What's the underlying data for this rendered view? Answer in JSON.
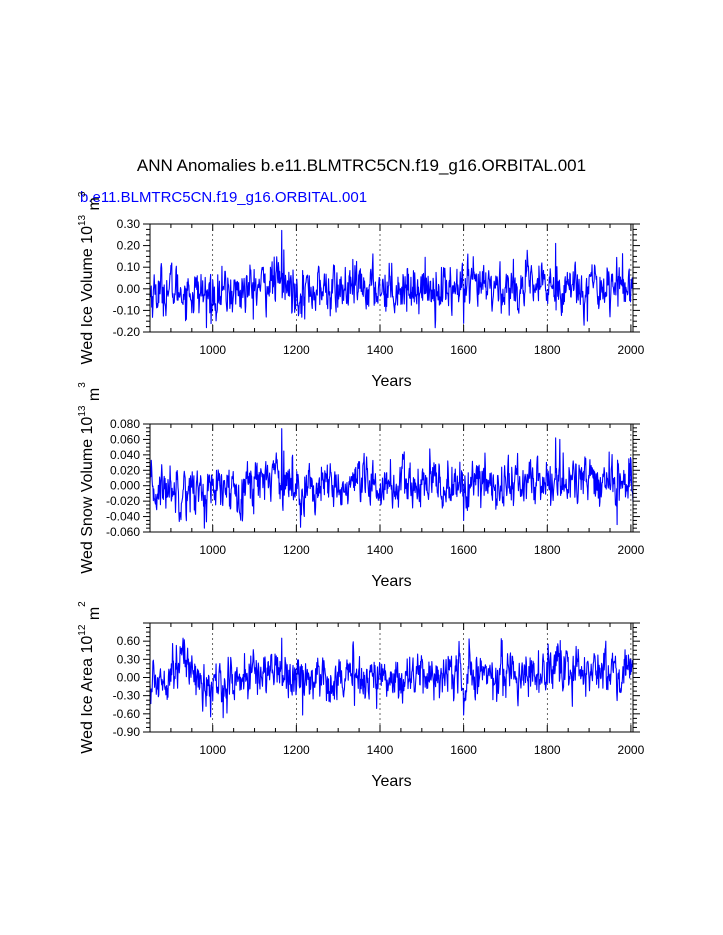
{
  "title": "ANN Anomalies b.e11.BLMTRC5CN.f19_g16.ORBITAL.001",
  "case_label": "b.e11.BLMTRC5CN.f19_g16.ORBITAL.001",
  "colors": {
    "series": "#0000ff",
    "axis": "#000000",
    "grid": "#000000"
  },
  "chart_data": [
    {
      "type": "line",
      "name": "ice-volume",
      "ylabel": "Wed Ice Volume 10^13 m^3",
      "ylabel_parts": {
        "main": "Wed Ice Volume 10",
        "exp1": "13",
        "unit": " m",
        "exp2": "3"
      },
      "xlabel": "Years",
      "xlim": [
        850,
        2005
      ],
      "ylim": [
        -0.2,
        0.3
      ],
      "xticks": [
        1000,
        1200,
        1400,
        1600,
        1800,
        2000
      ],
      "xtick_labels": [
        "1000",
        "1200",
        "1400",
        "1600",
        "1800",
        "2000"
      ],
      "yticks": [
        -0.2,
        -0.1,
        0.0,
        0.1,
        0.2,
        0.3
      ],
      "ytick_labels": [
        "-0.20",
        "-0.10",
        "0.00",
        "0.10",
        "0.20",
        "0.30"
      ],
      "vgrid": [
        1000,
        1200,
        1400,
        1600,
        1800,
        2000
      ],
      "series": [
        {
          "name": "Wed Ice Volume",
          "start_year": 850,
          "end_year": 2005,
          "amp": 0.05,
          "min": -0.18,
          "max": 0.27,
          "trend": [
            [
              850,
              -0.02
            ],
            [
              900,
              0.0
            ],
            [
              1000,
              -0.03
            ],
            [
              1100,
              0.0
            ],
            [
              1150,
              0.04
            ],
            [
              1180,
              0.0
            ],
            [
              1300,
              -0.01
            ],
            [
              1400,
              0.01
            ],
            [
              1600,
              0.0
            ],
            [
              1800,
              0.01
            ],
            [
              2005,
              0.02
            ]
          ],
          "spikes": [
            [
              1165,
              0.27
            ],
            [
              1170,
              0.18
            ],
            [
              985,
              -0.18
            ],
            [
              1220,
              -0.14
            ],
            [
              1600,
              -0.16
            ],
            [
              1820,
              0.21
            ],
            [
              1950,
              -0.13
            ]
          ]
        }
      ]
    },
    {
      "type": "line",
      "name": "snow-volume",
      "ylabel": "Wed Snow Volume 10^13 m^3",
      "ylabel_parts": {
        "main": "Wed Snow Volume 10",
        "exp1": "13",
        "unit": " m",
        "exp2": "3"
      },
      "xlabel": "Years",
      "xlim": [
        850,
        2005
      ],
      "ylim": [
        -0.06,
        0.08
      ],
      "xticks": [
        1000,
        1200,
        1400,
        1600,
        1800,
        2000
      ],
      "xtick_labels": [
        "1000",
        "1200",
        "1400",
        "1600",
        "1800",
        "2000"
      ],
      "yticks": [
        -0.06,
        -0.04,
        -0.02,
        0.0,
        0.02,
        0.04,
        0.06,
        0.08
      ],
      "ytick_labels": [
        "-0.060",
        "-0.040",
        "-0.020",
        "0.000",
        "0.020",
        "0.040",
        "0.060",
        "0.080"
      ],
      "vgrid": [
        1000,
        1200,
        1400,
        1600,
        1800,
        2000
      ],
      "series": [
        {
          "name": "Wed Snow Volume",
          "start_year": 850,
          "end_year": 2005,
          "amp": 0.014,
          "min": -0.055,
          "max": 0.075,
          "trend": [
            [
              850,
              -0.01
            ],
            [
              900,
              0.0
            ],
            [
              1000,
              -0.01
            ],
            [
              1100,
              0.005
            ],
            [
              1150,
              0.02
            ],
            [
              1180,
              0.0
            ],
            [
              1300,
              -0.005
            ],
            [
              1400,
              0.0
            ],
            [
              1600,
              0.0
            ],
            [
              1800,
              0.005
            ],
            [
              2005,
              0.005
            ]
          ],
          "spikes": [
            [
              1165,
              0.074
            ],
            [
              1170,
              0.045
            ],
            [
              980,
              -0.055
            ],
            [
              1600,
              -0.045
            ],
            [
              1820,
              0.062
            ],
            [
              1830,
              0.06
            ]
          ]
        }
      ]
    },
    {
      "type": "line",
      "name": "ice-area",
      "ylabel": "Wed Ice Area 10^12 m^2",
      "ylabel_parts": {
        "main": "Wed Ice Area 10",
        "exp1": "12",
        "unit": " m",
        "exp2": "2"
      },
      "xlabel": "Years",
      "xlim": [
        850,
        2005
      ],
      "ylim": [
        -0.9,
        0.9
      ],
      "xticks": [
        1000,
        1200,
        1400,
        1600,
        1800,
        2000
      ],
      "xtick_labels": [
        "1000",
        "1200",
        "1400",
        "1600",
        "1800",
        "2000"
      ],
      "yticks": [
        -0.9,
        -0.6,
        -0.3,
        0.0,
        0.3,
        0.6
      ],
      "ytick_labels": [
        "-0.90",
        "-0.60",
        "-0.30",
        "0.00",
        "0.30",
        "0.60"
      ],
      "vgrid": [
        1000,
        1200,
        1400,
        1600,
        1800,
        2000
      ],
      "series": [
        {
          "name": "Wed Ice Area",
          "start_year": 850,
          "end_year": 2005,
          "amp": 0.17,
          "min": -0.68,
          "max": 0.65,
          "trend": [
            [
              850,
              -0.15
            ],
            [
              880,
              0.0
            ],
            [
              920,
              0.3
            ],
            [
              950,
              0.2
            ],
            [
              980,
              -0.2
            ],
            [
              1000,
              -0.15
            ],
            [
              1100,
              0.05
            ],
            [
              1150,
              0.15
            ],
            [
              1200,
              0.0
            ],
            [
              1400,
              0.0
            ],
            [
              1600,
              0.05
            ],
            [
              1800,
              0.1
            ],
            [
              2005,
              0.1
            ]
          ],
          "spikes": [
            [
              1165,
              0.65
            ],
            [
              995,
              -0.65
            ],
            [
              1940,
              0.6
            ],
            [
              1600,
              -0.62
            ],
            [
              1215,
              -0.62
            ]
          ]
        }
      ]
    }
  ]
}
